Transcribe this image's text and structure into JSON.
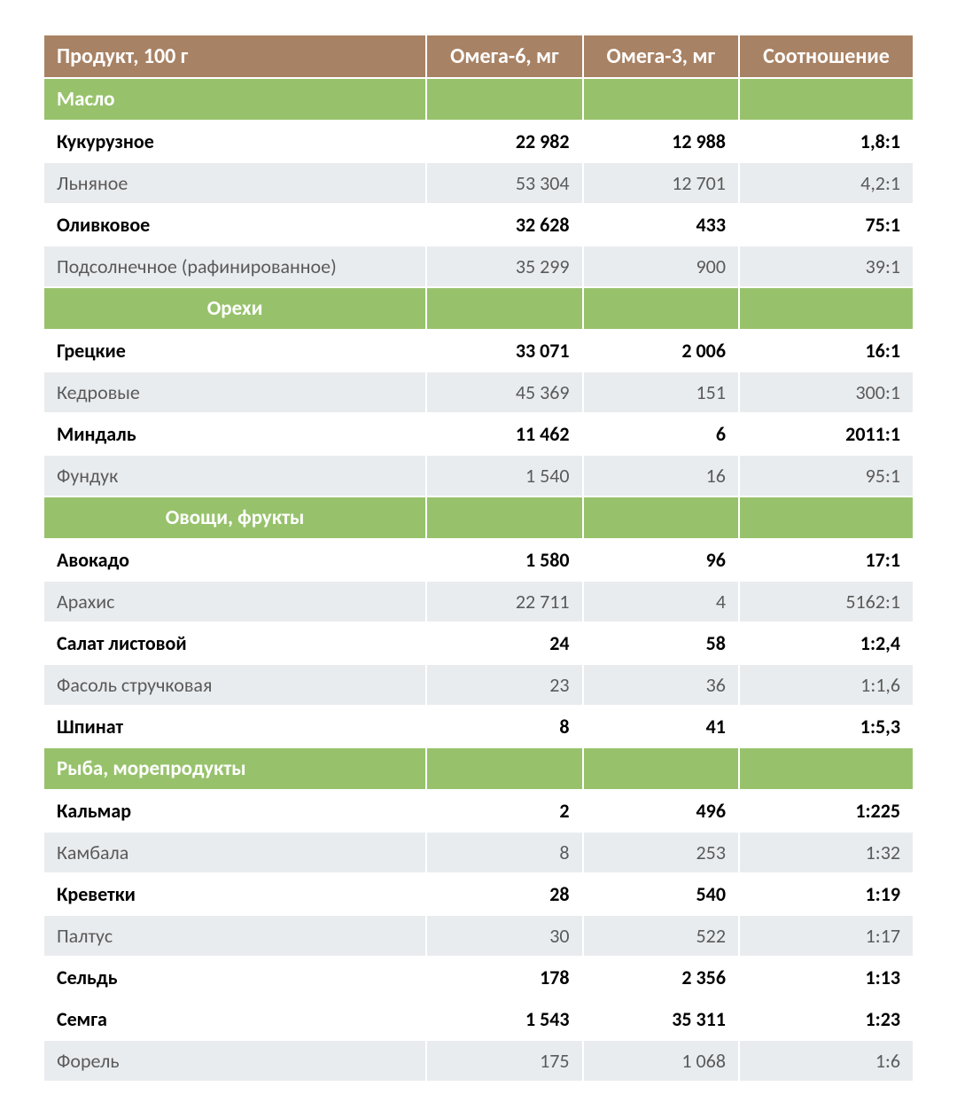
{
  "table": {
    "type": "table",
    "colors": {
      "header_bg": "#a88264",
      "header_text": "#ffffff",
      "section_bg": "#97c26b",
      "section_text": "#ffffff",
      "row_even_bg": "#ffffff",
      "row_odd_bg": "#e9ecef",
      "text_bold": "#000000",
      "text_normal": "#5a5a5a",
      "border": "#ffffff"
    },
    "font": {
      "family": "Segoe UI, Calibri, Arial, sans-serif",
      "header_size_pt": 18,
      "body_size_pt": 17,
      "header_weight": 700,
      "bold_weight": 700,
      "normal_weight": 400
    },
    "columns": [
      {
        "key": "product",
        "label": "Продукт, 100 г",
        "align": "left",
        "width_pct": 44
      },
      {
        "key": "omega6",
        "label": "Омега-6, мг",
        "align": "right",
        "width_pct": 18
      },
      {
        "key": "omega3",
        "label": "Омега-3, мг",
        "align": "right",
        "width_pct": 18
      },
      {
        "key": "ratio",
        "label": "Соотношение",
        "align": "right",
        "width_pct": 20
      }
    ],
    "rows": [
      {
        "type": "section",
        "label": "Масло",
        "label_align": "left"
      },
      {
        "type": "data",
        "bold": true,
        "product": "Кукурузное",
        "omega6": "22 982",
        "omega3": "12 988",
        "ratio": "1,8:1"
      },
      {
        "type": "data",
        "bold": false,
        "product": "Льняное",
        "omega6": "53 304",
        "omega3": "12 701",
        "ratio": "4,2:1"
      },
      {
        "type": "data",
        "bold": true,
        "product": "Оливковое",
        "omega6": "32 628",
        "omega3": "433",
        "ratio": "75:1"
      },
      {
        "type": "data",
        "bold": false,
        "product": "Подсолнечное (рафинированное)",
        "omega6": "35 299",
        "omega3": "900",
        "ratio": "39:1"
      },
      {
        "type": "section",
        "label": "Орехи",
        "label_align": "center"
      },
      {
        "type": "data",
        "bold": true,
        "product": "Грецкие",
        "omega6": "33 071",
        "omega3": "2 006",
        "ratio": "16:1"
      },
      {
        "type": "data",
        "bold": false,
        "product": "Кедровые",
        "omega6": "45 369",
        "omega3": "151",
        "ratio": "300:1"
      },
      {
        "type": "data",
        "bold": true,
        "product": "Миндаль",
        "omega6": "11 462",
        "omega3": "6",
        "ratio": "2011:1"
      },
      {
        "type": "data",
        "bold": false,
        "product": "Фундук",
        "omega6": "1 540",
        "omega3": "16",
        "ratio": "95:1"
      },
      {
        "type": "section",
        "label": "Овощи, фрукты",
        "label_align": "center"
      },
      {
        "type": "data",
        "bold": true,
        "product": "Авокадо",
        "omega6": "1 580",
        "omega3": "96",
        "ratio": "17:1"
      },
      {
        "type": "data",
        "bold": false,
        "product": "Арахис",
        "omega6": "22 711",
        "omega3": "4",
        "ratio": "5162:1"
      },
      {
        "type": "data",
        "bold": true,
        "product": "Салат листовой",
        "omega6": "24",
        "omega3": "58",
        "ratio": "1:2,4"
      },
      {
        "type": "data",
        "bold": false,
        "product": "Фасоль стручковая",
        "omega6": "23",
        "omega3": "36",
        "ratio": "1:1,6"
      },
      {
        "type": "data",
        "bold": true,
        "product": "Шпинат",
        "omega6": "8",
        "omega3": "41",
        "ratio": "1:5,3"
      },
      {
        "type": "section",
        "label": "Рыба, морепродукты",
        "label_align": "left"
      },
      {
        "type": "data",
        "bold": true,
        "product": "Кальмар",
        "omega6": "2",
        "omega3": "496",
        "ratio": "1:225"
      },
      {
        "type": "data",
        "bold": false,
        "product": "Камбала",
        "omega6": "8",
        "omega3": "253",
        "ratio": "1:32"
      },
      {
        "type": "data",
        "bold": true,
        "product": "Креветки",
        "omega6": "28",
        "omega3": "540",
        "ratio": "1:19"
      },
      {
        "type": "data",
        "bold": false,
        "product": "Палтус",
        "omega6": "30",
        "omega3": "522",
        "ratio": "1:17"
      },
      {
        "type": "data",
        "bold": true,
        "product": "Сельдь",
        "omega6": "178",
        "omega3": "2 356",
        "ratio": "1:13"
      },
      {
        "type": "data",
        "bold": true,
        "product": "Семга",
        "omega6": "1 543",
        "omega3": "35 311",
        "ratio": "1:23"
      },
      {
        "type": "data",
        "bold": false,
        "product": "Форель",
        "omega6": "175",
        "omega3": "1 068",
        "ratio": "1:6"
      }
    ]
  }
}
